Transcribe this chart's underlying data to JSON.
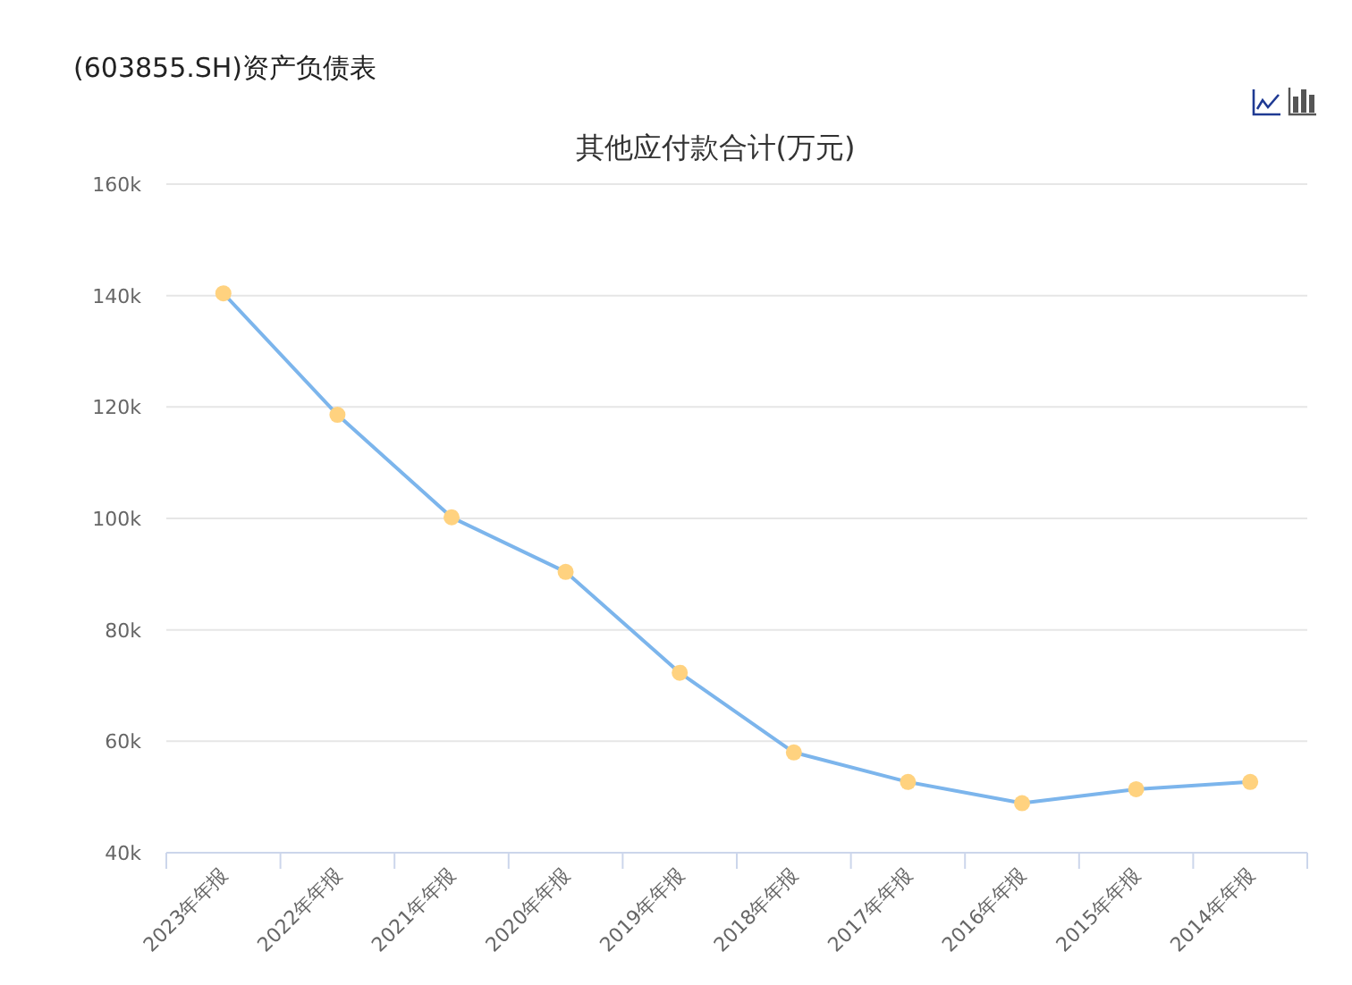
{
  "chart_data": {
    "type": "line",
    "title": "其他应付款合计(万元)",
    "annotations": [
      "(603855.SH)资产负债表"
    ],
    "categories": [
      "2023年年报",
      "2022年年报",
      "2021年年报",
      "2020年年报",
      "2019年年报",
      "2018年年报",
      "2017年年报",
      "2016年年报",
      "2015年年报",
      "2014年年报"
    ],
    "series": [
      {
        "color": "#7cb5ec",
        "colors": [
          "#ffd27f",
          "#ffd27f",
          "#ffd27f",
          "#ffd27f",
          "#ffd27f",
          "#ffd27f",
          "#ffd27f",
          "#ffd27f",
          "#ffd27f",
          "#ffd27f"
        ],
        "values": [
          140400,
          118600,
          100200,
          90400,
          72300,
          58000,
          52700,
          48900,
          51400,
          52700
        ]
      }
    ],
    "ylim": [
      40000,
      160000
    ],
    "yticks": [
      {
        "value": 40000,
        "label": "40k"
      },
      {
        "value": 60000,
        "label": "60k"
      },
      {
        "value": 80000,
        "label": "80k"
      },
      {
        "value": 100000,
        "label": "100k"
      },
      {
        "value": 120000,
        "label": "120k"
      },
      {
        "value": 140000,
        "label": "140k"
      },
      {
        "value": 160000,
        "label": "160k"
      }
    ],
    "grid": "y",
    "marker": "circle",
    "line_style": "solid"
  }
}
